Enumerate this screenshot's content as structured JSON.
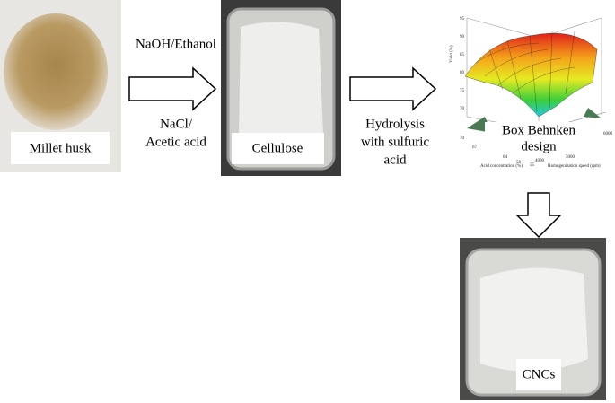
{
  "images": [
    {
      "label": "Millet husk"
    },
    {
      "label": "Cellulose"
    },
    {
      "label": "CNCs"
    }
  ],
  "arrows": [
    {
      "labels_above": [
        "NaOH/Ethanol"
      ],
      "labels_below": [
        "NaCl/",
        "Acetic acid"
      ]
    },
    {
      "labels_below": [
        "Hydrolysis",
        "with sulfuric",
        "acid"
      ]
    }
  ],
  "surface_plot": {
    "y_axis_label": "Yield (%)",
    "y_ticks": [
      "95",
      "90",
      "85",
      "80",
      "75",
      "70"
    ],
    "x_axis_label": "Acid concentration (%)",
    "x_ticks": [
      "70",
      "67",
      "64",
      "58",
      "55"
    ],
    "z_axis_label": "Homogenization speed (rpm)",
    "z_ticks": [
      "4000",
      "5000",
      "6000"
    ],
    "caption": [
      "Box Behnken",
      "design"
    ]
  }
}
